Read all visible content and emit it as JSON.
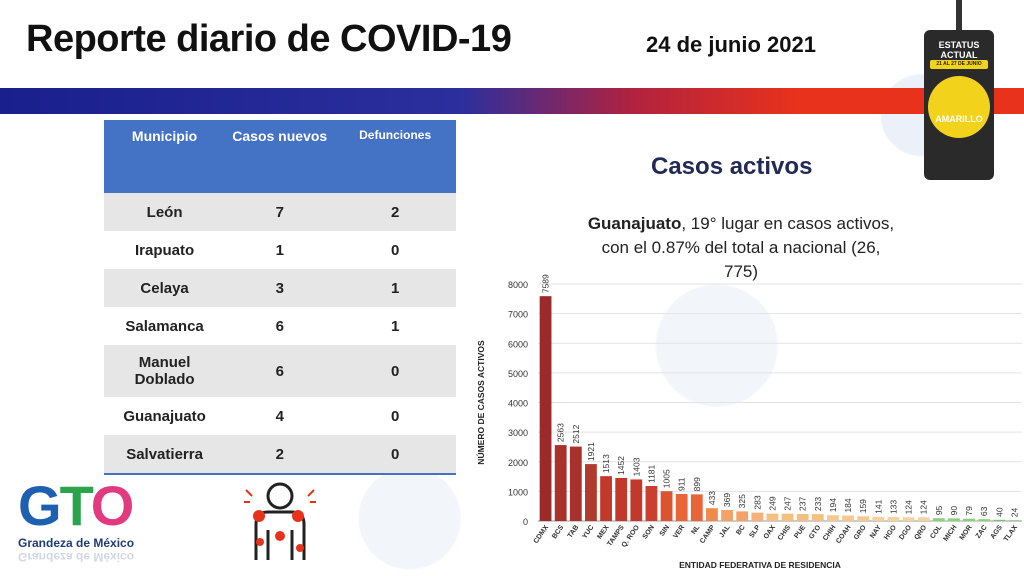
{
  "header": {
    "title": "Reporte diario de COVID-19",
    "date": "24 de junio 2021"
  },
  "status": {
    "line1": "ESTATUS",
    "line2": "ACTUAL",
    "range": "21 AL 27 DE JUNIO",
    "level": "AMARILLO",
    "color": "#f2d21b"
  },
  "table": {
    "headers": [
      "Municipio",
      "Casos nuevos",
      "Defunciones"
    ],
    "rows": [
      [
        "León",
        "7",
        "2"
      ],
      [
        "Irapuato",
        "1",
        "0"
      ],
      [
        "Celaya",
        "3",
        "1"
      ],
      [
        "Salamanca",
        "6",
        "1"
      ],
      [
        "Manuel Doblado",
        "6",
        "0"
      ],
      [
        "Guanajuato",
        "4",
        "0"
      ],
      [
        "Salvatierra",
        "2",
        "0"
      ]
    ]
  },
  "chart_title": "Casos activos",
  "subtitle": {
    "bold": "Guanajuato",
    "rest": ", 19° lugar en casos activos, con el 0.87% del total a nacional (26, 775)"
  },
  "logo": {
    "letters": [
      "G",
      "T",
      "O"
    ],
    "tagline": "Grandeza de México"
  },
  "chart_data": {
    "type": "bar",
    "categories": [
      "CDMX",
      "BCS",
      "TAB",
      "YUC",
      "MEX",
      "TAMPS",
      "Q. ROO",
      "SON",
      "SIN",
      "VER",
      "NL",
      "CAMP",
      "JAL",
      "BC",
      "SLP",
      "OAX",
      "CHIS",
      "PUE",
      "GTO",
      "CHIH",
      "COAH",
      "GRO",
      "NAY",
      "HGO",
      "DGO",
      "QRO",
      "COL",
      "MICH",
      "MOR",
      "ZAC",
      "AGS",
      "TLAX"
    ],
    "values": [
      7589,
      2563,
      2512,
      1921,
      1513,
      1452,
      1403,
      1181,
      1005,
      911,
      899,
      433,
      369,
      325,
      283,
      249,
      247,
      237,
      233,
      194,
      184,
      159,
      141,
      133,
      124,
      124,
      95,
      90,
      79,
      63,
      40,
      24
    ],
    "colors": [
      "#9b2a2a",
      "#a8312b",
      "#a8312b",
      "#b03a2e",
      "#c0392b",
      "#c0392b",
      "#c0392b",
      "#c94030",
      "#d9542f",
      "#e8653a",
      "#e8653a",
      "#f08a4b",
      "#f4a166",
      "#f4a166",
      "#f5b177",
      "#f5c07f",
      "#f5c07f",
      "#f5c07f",
      "#f5c07f",
      "#f5c98e",
      "#f5c98e",
      "#f5c98e",
      "#f5d29e",
      "#f5d29e",
      "#f5d29e",
      "#f5d29e",
      "#8bd17a",
      "#8bd17a",
      "#8bd17a",
      "#8bd17a",
      "#7ac26c",
      "#7ac26c"
    ],
    "xlabel": "ENTIDAD FEDERATIVA DE RESIDENCIA",
    "ylabel": "NÚMERO DE CASOS ACTIVOS",
    "yticks": [
      0,
      1000,
      2000,
      3000,
      4000,
      5000,
      6000,
      7000,
      8000
    ],
    "ylim": [
      0,
      8000
    ]
  }
}
